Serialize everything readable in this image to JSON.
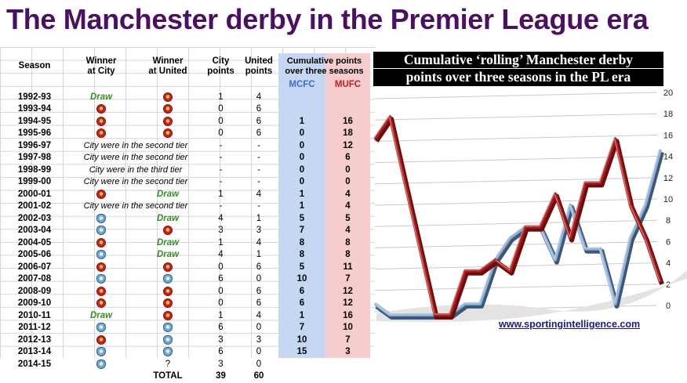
{
  "title": "The Manchester derby in the Premier League era",
  "table": {
    "headers": {
      "season": "Season",
      "winner_city_1": "Winner",
      "winner_city_2": "at City",
      "winner_united_1": "Winner",
      "winner_united_2": "at United",
      "city_points_1": "City",
      "city_points_2": "points",
      "united_points_1": "United",
      "united_points_2": "points",
      "cumulative_1": "Cumulative points",
      "cumulative_2": "over three seasons",
      "mcfc": "MCFC",
      "mufc": "MUFC"
    },
    "rows": [
      {
        "season": "1992-93",
        "city_home": "draw",
        "united_home": "mufc",
        "city_pts": "1",
        "united_pts": "4",
        "cum_city": "",
        "cum_united": ""
      },
      {
        "season": "1993-94",
        "city_home": "mufc",
        "united_home": "mufc",
        "city_pts": "0",
        "united_pts": "6",
        "cum_city": "",
        "cum_united": ""
      },
      {
        "season": "1994-95",
        "city_home": "mufc",
        "united_home": "mufc",
        "city_pts": "0",
        "united_pts": "6",
        "cum_city": "1",
        "cum_united": "16"
      },
      {
        "season": "1995-96",
        "city_home": "mufc",
        "united_home": "mufc",
        "city_pts": "0",
        "united_pts": "6",
        "cum_city": "0",
        "cum_united": "18"
      },
      {
        "season": "1996-97",
        "note": "City were in the second tier",
        "city_pts": "-",
        "united_pts": "-",
        "cum_city": "0",
        "cum_united": "12"
      },
      {
        "season": "1997-98",
        "note": "City were in the second tier",
        "city_pts": "-",
        "united_pts": "-",
        "cum_city": "0",
        "cum_united": "6"
      },
      {
        "season": "1998-99",
        "note": "City were in the third tier",
        "city_pts": "-",
        "united_pts": "-",
        "cum_city": "0",
        "cum_united": "0"
      },
      {
        "season": "1999-00",
        "note": "City were in the second tier",
        "city_pts": "-",
        "united_pts": "-",
        "cum_city": "0",
        "cum_united": "0"
      },
      {
        "season": "2000-01",
        "city_home": "mufc",
        "united_home": "draw",
        "city_pts": "1",
        "united_pts": "4",
        "cum_city": "1",
        "cum_united": "4"
      },
      {
        "season": "2001-02",
        "note": "City were in the second tier",
        "city_pts": "-",
        "united_pts": "-",
        "cum_city": "1",
        "cum_united": "4"
      },
      {
        "season": "2002-03",
        "city_home": "mcfc",
        "united_home": "draw",
        "city_pts": "4",
        "united_pts": "1",
        "cum_city": "5",
        "cum_united": "5"
      },
      {
        "season": "2003-04",
        "city_home": "mcfc",
        "united_home": "mufc",
        "city_pts": "3",
        "united_pts": "3",
        "cum_city": "7",
        "cum_united": "4"
      },
      {
        "season": "2004-05",
        "city_home": "mufc",
        "united_home": "draw",
        "city_pts": "1",
        "united_pts": "4",
        "cum_city": "8",
        "cum_united": "8"
      },
      {
        "season": "2005-06",
        "city_home": "mcfc",
        "united_home": "draw",
        "city_pts": "4",
        "united_pts": "1",
        "cum_city": "8",
        "cum_united": "8"
      },
      {
        "season": "2006-07",
        "city_home": "mufc",
        "united_home": "mufc",
        "city_pts": "0",
        "united_pts": "6",
        "cum_city": "5",
        "cum_united": "11"
      },
      {
        "season": "2007-08",
        "city_home": "mcfc",
        "united_home": "mcfc",
        "city_pts": "6",
        "united_pts": "0",
        "cum_city": "10",
        "cum_united": "7"
      },
      {
        "season": "2008-09",
        "city_home": "mufc",
        "united_home": "mufc",
        "city_pts": "0",
        "united_pts": "6",
        "cum_city": "6",
        "cum_united": "12"
      },
      {
        "season": "2009-10",
        "city_home": "mufc",
        "united_home": "mufc",
        "city_pts": "0",
        "united_pts": "6",
        "cum_city": "6",
        "cum_united": "12"
      },
      {
        "season": "2010-11",
        "city_home": "draw",
        "united_home": "mufc",
        "city_pts": "1",
        "united_pts": "4",
        "cum_city": "1",
        "cum_united": "16"
      },
      {
        "season": "2011-12",
        "city_home": "mcfc",
        "united_home": "mcfc",
        "city_pts": "6",
        "united_pts": "0",
        "cum_city": "7",
        "cum_united": "10"
      },
      {
        "season": "2012-13",
        "city_home": "mufc",
        "united_home": "mcfc",
        "city_pts": "3",
        "united_pts": "3",
        "cum_city": "10",
        "cum_united": "7"
      },
      {
        "season": "2013-14",
        "city_home": "mcfc",
        "united_home": "mcfc",
        "city_pts": "6",
        "united_pts": "0",
        "cum_city": "15",
        "cum_united": "3"
      },
      {
        "season": "2014-15",
        "city_home": "mcfc",
        "united_home": "?",
        "city_pts": "3",
        "united_pts": "0",
        "cum_city": "",
        "cum_united": ""
      }
    ],
    "draw_label": "Draw",
    "unknown_label": "?",
    "total_label": "TOTAL",
    "total_city": "39",
    "total_united": "60"
  },
  "chart_data": {
    "type": "line",
    "title_line1": "Cumulative ‘rolling’ Manchester derby",
    "title_line2": "points over three seasons in the PL era",
    "xlabel": "",
    "ylabel": "",
    "ylim": [
      0,
      20
    ],
    "yticks": [
      "0",
      "2",
      "4",
      "6",
      "8",
      "10",
      "12",
      "14",
      "16",
      "18",
      "20"
    ],
    "grid": true,
    "style": "3d-ribbon",
    "series": [
      {
        "key": "united",
        "values": [
          16,
          18,
          12,
          6,
          0,
          0,
          4,
          4,
          5,
          4,
          8,
          8,
          11,
          7,
          12,
          12,
          16,
          10,
          7,
          3
        ]
      },
      {
        "key": "city",
        "values": [
          1,
          0,
          0,
          0,
          0,
          0,
          1,
          1,
          5,
          7,
          8,
          8,
          5,
          10,
          6,
          6,
          1,
          7,
          10,
          15
        ]
      }
    ],
    "colors": {
      "united": "#b01c1c",
      "city": "#5f7f9e"
    }
  },
  "footer": {
    "url": "www.sportingintelligence.com"
  }
}
